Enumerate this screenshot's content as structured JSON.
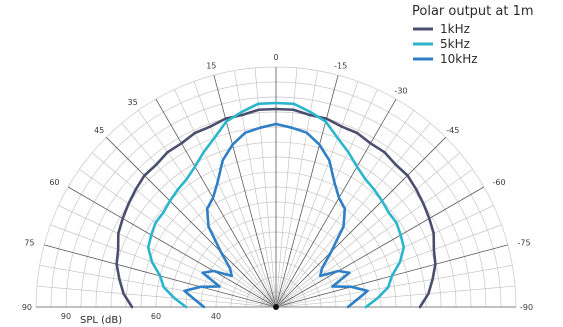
{
  "chart_data": {
    "type": "polar",
    "title": "Polar output at 1m",
    "axis_title": "SPL (dB)",
    "angle_ticks": [
      "90",
      "75",
      "60",
      "45",
      "35",
      "15",
      "0",
      "-15",
      "-30",
      "-45",
      "-60",
      "-75",
      "-90"
    ],
    "angle_tick_values": [
      90,
      75,
      60,
      45,
      35,
      15,
      0,
      -15,
      -30,
      -45,
      -60,
      -75,
      -90
    ],
    "radial_ticks": [
      "90",
      "60",
      "40"
    ],
    "radial_tick_values": [
      90,
      60,
      40
    ],
    "radial_range_db": [
      20,
      100
    ],
    "legend_position": "top-right",
    "grid": true,
    "series": [
      {
        "name": "1kHz",
        "color": "#4a4f6e",
        "angles": [
          -90,
          -85,
          -80,
          -75,
          -70,
          -65,
          -60,
          -55,
          -50,
          -45,
          -40,
          -35,
          -30,
          -25,
          -20,
          -15,
          -10,
          -5,
          0,
          5,
          10,
          15,
          20,
          25,
          30,
          35,
          40,
          45,
          50,
          55,
          60,
          65,
          70,
          75,
          80,
          85,
          90
        ],
        "db": [
          68,
          71,
          73,
          75,
          76,
          78,
          79,
          80,
          81,
          82,
          82,
          83,
          83,
          84,
          84,
          85,
          85,
          86,
          86,
          86,
          85,
          85,
          84,
          84,
          83,
          83,
          82,
          82,
          81,
          80,
          79,
          78,
          76,
          75,
          73,
          71,
          68
        ]
      },
      {
        "name": "5kHz",
        "color": "#2bb5cc",
        "angles": [
          -90,
          -85,
          -80,
          -75,
          -70,
          -65,
          -60,
          -55,
          -50,
          -45,
          -40,
          -35,
          -30,
          -25,
          -20,
          -15,
          -10,
          -5,
          0,
          5,
          10,
          15,
          20,
          25,
          30,
          35,
          40,
          45,
          50,
          55,
          60,
          65,
          70,
          75,
          80,
          85,
          90
        ],
        "db": [
          50,
          54,
          58,
          60,
          64,
          67,
          68,
          69,
          69,
          70,
          71,
          72,
          74,
          77,
          80,
          84,
          86,
          88,
          88,
          88,
          86,
          84,
          80,
          77,
          74,
          72,
          71,
          70,
          69,
          69,
          68,
          67,
          64,
          60,
          58,
          54,
          50
        ]
      },
      {
        "name": "10kHz",
        "color": "#2f7fc6",
        "angles": [
          -90,
          -85,
          -80,
          -75,
          -70,
          -65,
          -60,
          -55,
          -50,
          -45,
          -40,
          -35,
          -30,
          -25,
          -20,
          -15,
          -10,
          -5,
          0,
          5,
          10,
          15,
          20,
          25,
          30,
          35,
          40,
          45,
          50,
          55,
          60,
          65,
          70,
          75,
          80,
          85,
          90
        ],
        "db": [
          44,
          47,
          51,
          46,
          40,
          47,
          44,
          38,
          40,
          46,
          55,
          60,
          62,
          66,
          72,
          76,
          79,
          80,
          81,
          80,
          79,
          76,
          72,
          66,
          62,
          60,
          55,
          46,
          40,
          38,
          44,
          47,
          40,
          46,
          51,
          47,
          44
        ]
      }
    ]
  }
}
